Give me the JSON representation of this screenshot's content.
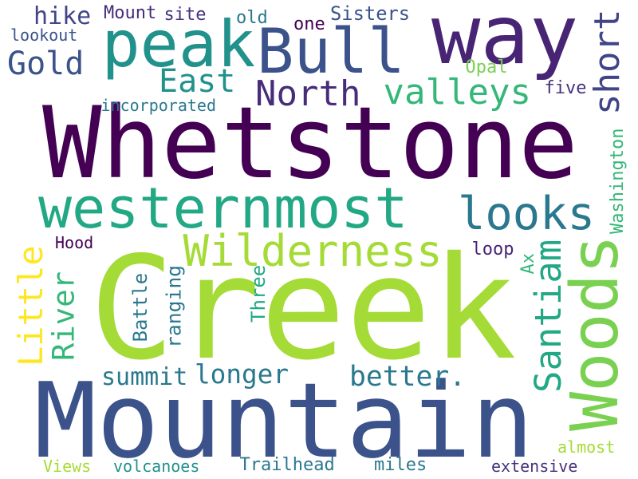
{
  "words": [
    {
      "key": "whetstone",
      "text": "Whetstone",
      "color": "#440154"
    },
    {
      "key": "creek",
      "text": "Creek",
      "color": "#a5db36"
    },
    {
      "key": "mountain",
      "text": "Mountain",
      "color": "#3b528b"
    },
    {
      "key": "way",
      "text": "way",
      "color": "#482475"
    },
    {
      "key": "peak",
      "text": "peak",
      "color": "#21918c"
    },
    {
      "key": "bull",
      "text": "Bull",
      "color": "#3b528b"
    },
    {
      "key": "westernmost",
      "text": "westernmost",
      "color": "#22a884"
    },
    {
      "key": "woods",
      "text": "Woods",
      "color": "#7ad151"
    },
    {
      "key": "wilderness",
      "text": "Wilderness",
      "color": "#a5db36"
    },
    {
      "key": "looks",
      "text": "looks",
      "color": "#2a788e"
    },
    {
      "key": "santiam",
      "text": "Santiam",
      "color": "#22a884"
    },
    {
      "key": "river",
      "text": "River",
      "color": "#35b779"
    },
    {
      "key": "little",
      "text": "Little",
      "color": "#fde725"
    },
    {
      "key": "gold",
      "text": "Gold",
      "color": "#3b528b"
    },
    {
      "key": "east",
      "text": "East",
      "color": "#21918c"
    },
    {
      "key": "north",
      "text": "North",
      "color": "#472c7a"
    },
    {
      "key": "valleys",
      "text": "valleys",
      "color": "#35b779"
    },
    {
      "key": "short",
      "text": "short",
      "color": "#414487"
    },
    {
      "key": "longer",
      "text": "longer",
      "color": "#2a788e"
    },
    {
      "key": "better",
      "text": "better.",
      "color": "#2a788e"
    },
    {
      "key": "summit",
      "text": "summit",
      "color": "#2a788e"
    },
    {
      "key": "hike",
      "text": "hike",
      "color": "#414487"
    },
    {
      "key": "mount",
      "text": "Mount",
      "color": "#472c7a"
    },
    {
      "key": "site",
      "text": "site",
      "color": "#46327e"
    },
    {
      "key": "old",
      "text": "old",
      "color": "#2a788e"
    },
    {
      "key": "one",
      "text": "one",
      "color": "#440154"
    },
    {
      "key": "sisters",
      "text": "Sisters",
      "color": "#3b528b"
    },
    {
      "key": "lookout",
      "text": "lookout",
      "color": "#3b528b"
    },
    {
      "key": "opal",
      "text": "Opal",
      "color": "#7ad151"
    },
    {
      "key": "incorporated",
      "text": "incorporated",
      "color": "#2a788e"
    },
    {
      "key": "five",
      "text": "five",
      "color": "#46327e"
    },
    {
      "key": "washington",
      "text": "Washington",
      "color": "#35b779"
    },
    {
      "key": "hood",
      "text": "Hood",
      "color": "#440154"
    },
    {
      "key": "loop",
      "text": "loop",
      "color": "#482475"
    },
    {
      "key": "ax",
      "text": "Ax",
      "color": "#35b779"
    },
    {
      "key": "battle",
      "text": "Battle",
      "color": "#2a788e"
    },
    {
      "key": "ranging",
      "text": "ranging",
      "color": "#2a788e"
    },
    {
      "key": "three",
      "text": "Three",
      "color": "#22a884"
    },
    {
      "key": "views",
      "text": "Views",
      "color": "#a5db36"
    },
    {
      "key": "volcanoes",
      "text": "volcanoes",
      "color": "#21918c"
    },
    {
      "key": "trailhead",
      "text": "Trailhead",
      "color": "#2a788e"
    },
    {
      "key": "miles",
      "text": "miles",
      "color": "#2a788e"
    },
    {
      "key": "extensive",
      "text": "extensive",
      "color": "#46327e"
    },
    {
      "key": "almost",
      "text": "almost",
      "color": "#a5db36"
    }
  ]
}
